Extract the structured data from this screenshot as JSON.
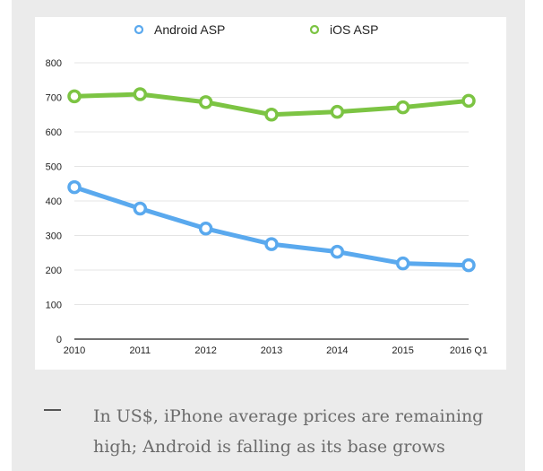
{
  "chart_data": {
    "type": "line",
    "title": "",
    "xlabel": "",
    "ylabel": "",
    "categories": [
      "2010",
      "2011",
      "2012",
      "2013",
      "2014",
      "2015",
      "2016 Q1"
    ],
    "ylim": [
      0,
      800
    ],
    "yticks": [
      0,
      100,
      200,
      300,
      400,
      500,
      600,
      700,
      800
    ],
    "grid": true,
    "legend_position": "top",
    "series": [
      {
        "name": "Android ASP",
        "color": "#5aa9ee",
        "values": [
          440,
          378,
          320,
          275,
          253,
          219,
          214
        ]
      },
      {
        "name": "iOS ASP",
        "color": "#7cc443",
        "values": [
          703,
          709,
          686,
          650,
          658,
          671,
          690
        ]
      }
    ]
  },
  "caption": {
    "text": "In US$, iPhone average prices are remaining high; Android is falling as its base grows"
  }
}
